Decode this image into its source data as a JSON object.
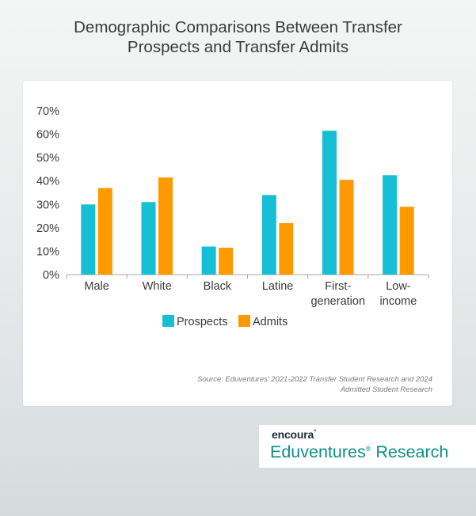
{
  "title_lines": [
    "Demographic Comparisons Between Transfer",
    "Prospects and Transfer Admits"
  ],
  "source_lines": [
    "Source: Eduventures' 2021-2022 Transfer Student Research and 2024",
    "Admitted Student Research"
  ],
  "logo": {
    "brand": "encoura",
    "brand_mark": "°",
    "name": "Eduventures",
    "reg_mark": "®",
    "suffix": " Research"
  },
  "colors": {
    "prospects": "#17bfd4",
    "admits": "#ff9900",
    "axis": "#a6a6a6",
    "text": "#3a3a3a"
  },
  "chart_data": {
    "type": "bar",
    "categories": [
      [
        "Male"
      ],
      [
        "White"
      ],
      [
        "Black"
      ],
      [
        "Latine"
      ],
      [
        "First-",
        "generation"
      ],
      [
        "Low-",
        "income"
      ]
    ],
    "series": [
      {
        "name": "Prospects",
        "values": [
          30,
          31,
          12,
          34,
          61.5,
          42.5
        ]
      },
      {
        "name": "Admits",
        "values": [
          37,
          41.5,
          11.5,
          22,
          40.5,
          29
        ]
      }
    ],
    "ylim": [
      0,
      70
    ],
    "yticks": [
      "0%",
      "10%",
      "20%",
      "30%",
      "40%",
      "50%",
      "60%",
      "70%"
    ],
    "grid": false,
    "legend": "bottom"
  }
}
